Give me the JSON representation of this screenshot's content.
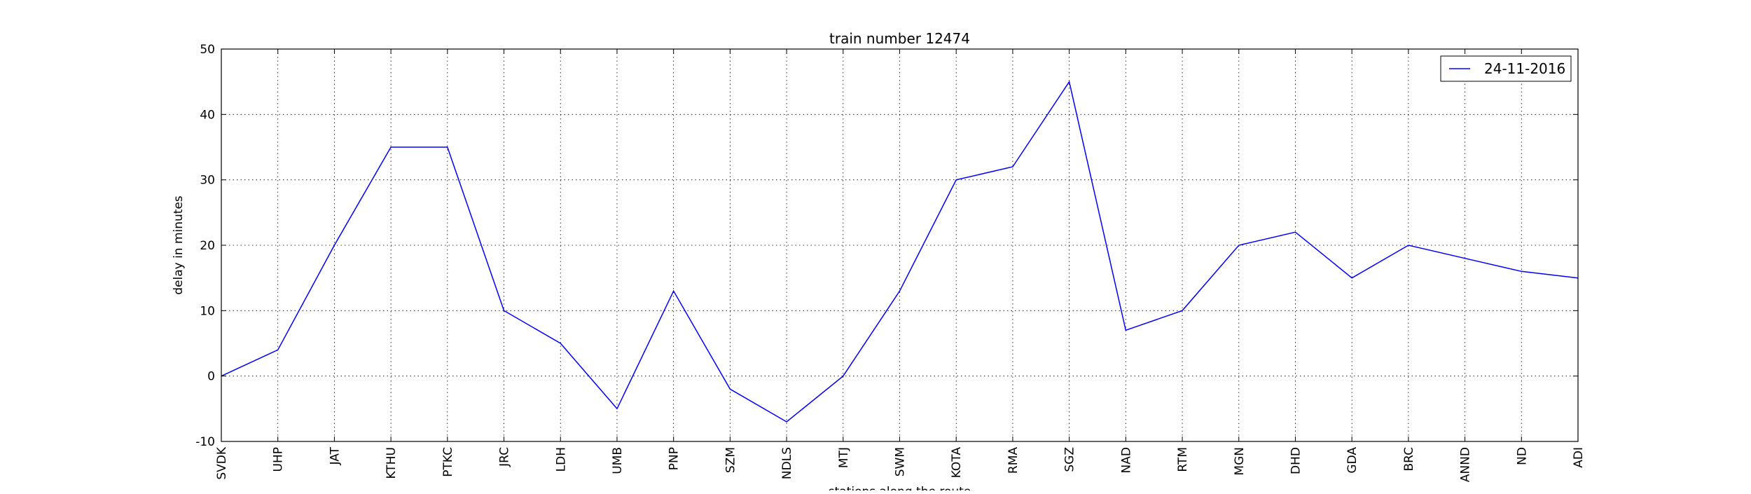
{
  "chart_data": {
    "type": "line",
    "title": "train number 12474",
    "xlabel": "stations along the route",
    "ylabel": "delay in minutes",
    "categories": [
      "SVDK",
      "UHP",
      "JAT",
      "KTHU",
      "PTKC",
      "JRC",
      "LDH",
      "UMB",
      "PNP",
      "SZM",
      "NDLS",
      "MTJ",
      "SWM",
      "KOTA",
      "RMA",
      "SGZ",
      "NAD",
      "RTM",
      "MGN",
      "DHD",
      "GDA",
      "BRC",
      "ANND",
      "ND",
      "ADI"
    ],
    "series": [
      {
        "name": "24-11-2016",
        "color": "#0000ff",
        "values": [
          0,
          4,
          20,
          35,
          35,
          10,
          5,
          -5,
          13,
          -2,
          -7,
          0,
          13,
          30,
          32,
          45,
          7,
          10,
          20,
          22,
          15,
          20,
          18,
          16,
          15
        ]
      }
    ],
    "ylim": [
      -10,
      50
    ],
    "yticks": [
      -10,
      0,
      10,
      20,
      30,
      40,
      50
    ],
    "grid": true,
    "legend_position": "top-right"
  }
}
